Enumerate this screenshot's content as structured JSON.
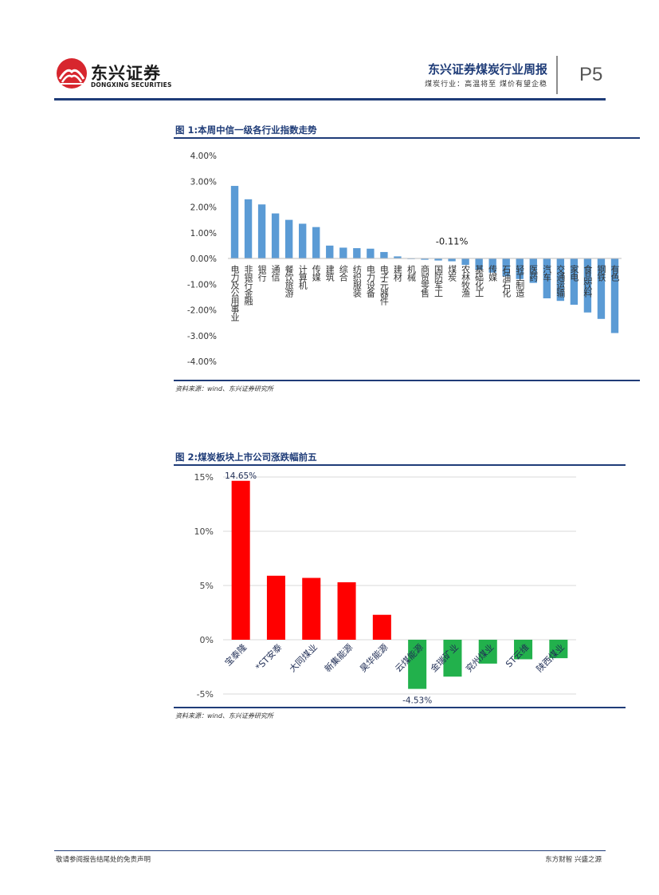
{
  "header": {
    "logo_cn": "东兴证券",
    "logo_en": "DONGXING SECURITIES",
    "report_title": "东兴证券煤炭行业周报",
    "report_subtitle": "煤炭行业：高温将至 煤价有望企稳",
    "page_number": "P5",
    "brand_color": "#d7262e"
  },
  "figure1": {
    "title": "图 1:本周中信一级各行业指数走势",
    "source": "资料来源：wind、东兴证券研究所",
    "annotation": "-0.11%"
  },
  "figure2": {
    "title": "图 2:煤炭板块上市公司涨跌幅前五",
    "source": "资料来源：wind、东兴证券研究所",
    "annotation_top": "14.65%",
    "annotation_bottom": "-4.53%"
  },
  "footer": {
    "left": "敬请参阅报告结尾处的免责声明",
    "right": "东方财智 兴盛之源"
  },
  "chart_data": [
    {
      "type": "bar",
      "categories": [
        "电力及公用事业",
        "非银行金融",
        "银行",
        "通信",
        "餐饮旅游",
        "计算机",
        "传媒",
        "建筑",
        "综合",
        "纺织服装",
        "电力设备",
        "电子元器件",
        "建材",
        "机械",
        "商贸零售",
        "国防军工",
        "煤炭",
        "农林牧渔",
        "基础化工",
        "传媒",
        "石油石化",
        "轻工制造",
        "医药",
        "汽车",
        "交通运输",
        "家电",
        "食品饮料",
        "钢铁",
        "有色"
      ],
      "values": [
        2.82,
        2.3,
        2.1,
        1.75,
        1.5,
        1.35,
        1.22,
        0.5,
        0.42,
        0.4,
        0.38,
        0.25,
        0.08,
        -0.02,
        -0.05,
        -0.08,
        -0.11,
        -0.25,
        -0.45,
        -0.55,
        -0.7,
        -0.8,
        -0.95,
        -1.55,
        -1.65,
        -1.8,
        -2.1,
        -2.35,
        -2.9
      ],
      "ylim": [
        -4,
        4
      ],
      "yticks": [
        "4.00%",
        "3.00%",
        "2.00%",
        "1.00%",
        "0.00%",
        "-1.00%",
        "-2.00%",
        "-3.00%",
        "-4.00%"
      ],
      "colors": {
        "bar": "#5b9bd5"
      },
      "grid": false,
      "legend": "none"
    },
    {
      "type": "bar",
      "categories": [
        "宝泰隆",
        "*ST安泰",
        "大同煤业",
        "新集能源",
        "昊华能源",
        "云煤能源",
        "金瑞矿业",
        "兖州煤业",
        "ST云维",
        "陕西煤业"
      ],
      "values": [
        14.65,
        5.9,
        5.7,
        5.3,
        2.3,
        -4.53,
        -3.4,
        -2.2,
        -1.8,
        -1.7
      ],
      "ylim": [
        -5,
        15
      ],
      "yticks": [
        "15%",
        "10%",
        "5%",
        "0%",
        "-5%"
      ],
      "colors": {
        "positive": "#ff0000",
        "negative": "#22b14c"
      },
      "grid": true,
      "legend": "none"
    }
  ]
}
